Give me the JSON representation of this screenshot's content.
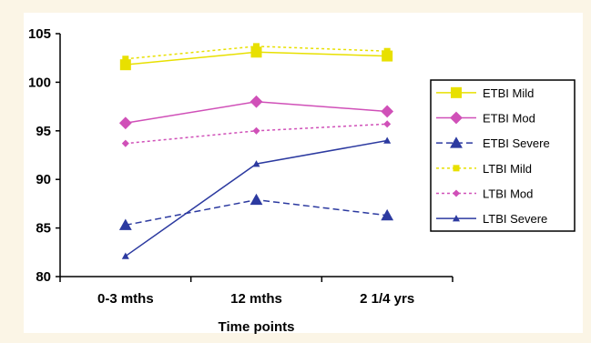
{
  "chart_data": {
    "type": "line",
    "title": "",
    "xlabel": "Time points",
    "ylabel": "",
    "categories": [
      "0-3 mths",
      "12 mths",
      "2 1/4 yrs"
    ],
    "ylim": [
      80,
      105
    ],
    "yticks": [
      80,
      85,
      90,
      95,
      100,
      105
    ],
    "grid": false,
    "legend_position": "right",
    "series": [
      {
        "name": "ETBI Mild",
        "values": [
          101.8,
          103.1,
          102.7
        ],
        "color": "#e8e000",
        "dash": "solid",
        "marker": "square",
        "marker_size": "large"
      },
      {
        "name": "ETBI Mod",
        "values": [
          95.8,
          98.0,
          97.0
        ],
        "color": "#d050b8",
        "dash": "solid",
        "marker": "diamond",
        "marker_size": "large"
      },
      {
        "name": "ETBI Severe",
        "values": [
          85.3,
          87.9,
          86.3
        ],
        "color": "#2c3aa0",
        "dash": "dashed",
        "marker": "triangle",
        "marker_size": "large"
      },
      {
        "name": "LTBI Mild",
        "values": [
          102.4,
          103.7,
          103.2
        ],
        "color": "#e8e000",
        "dash": "dotted",
        "marker": "square",
        "marker_size": "small"
      },
      {
        "name": "LTBI Mod",
        "values": [
          93.7,
          95.0,
          95.7
        ],
        "color": "#d050b8",
        "dash": "dotted",
        "marker": "diamond",
        "marker_size": "small"
      },
      {
        "name": "LTBI Severe",
        "values": [
          82.1,
          91.6,
          94.0
        ],
        "color": "#2c3aa0",
        "dash": "solid",
        "marker": "triangle",
        "marker_size": "small"
      }
    ]
  }
}
